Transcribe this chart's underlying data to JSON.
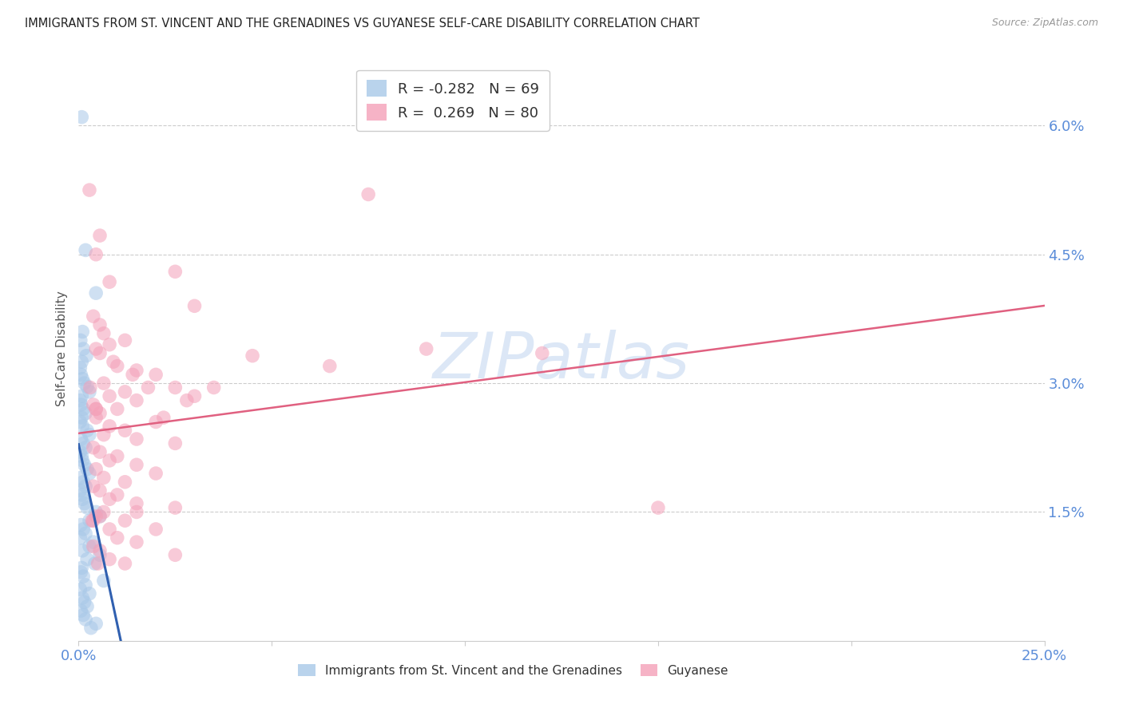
{
  "title": "IMMIGRANTS FROM ST. VINCENT AND THE GRENADINES VS GUYANESE SELF-CARE DISABILITY CORRELATION CHART",
  "source": "Source: ZipAtlas.com",
  "ylabel": "Self-Care Disability",
  "y_ticks": [
    0.0,
    1.5,
    3.0,
    4.5,
    6.0
  ],
  "y_tick_labels": [
    "",
    "1.5%",
    "3.0%",
    "4.5%",
    "6.0%"
  ],
  "xlim": [
    0.0,
    25.0
  ],
  "ylim": [
    0.0,
    6.8
  ],
  "blue_color": "#a8c8e8",
  "pink_color": "#f4a0b8",
  "trendline_blue_color": "#3060b0",
  "trendline_pink_color": "#e06080",
  "trendline_gray_color": "#bbbbbb",
  "watermark": "ZIPatlas",
  "grid_color": "#cccccc",
  "tick_color": "#5b8dd9",
  "blue_points": [
    [
      0.08,
      6.1
    ],
    [
      0.18,
      4.55
    ],
    [
      0.45,
      4.05
    ],
    [
      0.1,
      3.6
    ],
    [
      0.05,
      3.5
    ],
    [
      0.12,
      3.4
    ],
    [
      0.2,
      3.32
    ],
    [
      0.08,
      3.25
    ],
    [
      0.04,
      3.18
    ],
    [
      0.06,
      3.1
    ],
    [
      0.1,
      3.05
    ],
    [
      0.15,
      3.0
    ],
    [
      0.22,
      2.96
    ],
    [
      0.28,
      2.9
    ],
    [
      0.08,
      2.85
    ],
    [
      0.04,
      2.8
    ],
    [
      0.06,
      2.75
    ],
    [
      0.12,
      2.7
    ],
    [
      0.18,
      2.65
    ],
    [
      0.08,
      2.6
    ],
    [
      0.04,
      2.55
    ],
    [
      0.1,
      2.5
    ],
    [
      0.22,
      2.45
    ],
    [
      0.28,
      2.4
    ],
    [
      0.06,
      2.35
    ],
    [
      0.12,
      2.3
    ],
    [
      0.18,
      2.25
    ],
    [
      0.04,
      2.2
    ],
    [
      0.08,
      2.15
    ],
    [
      0.1,
      2.1
    ],
    [
      0.15,
      2.05
    ],
    [
      0.22,
      2.0
    ],
    [
      0.28,
      1.95
    ],
    [
      0.06,
      1.9
    ],
    [
      0.12,
      1.85
    ],
    [
      0.18,
      1.8
    ],
    [
      0.04,
      1.75
    ],
    [
      0.08,
      1.7
    ],
    [
      0.1,
      1.65
    ],
    [
      0.15,
      1.6
    ],
    [
      0.22,
      1.55
    ],
    [
      0.45,
      1.5
    ],
    [
      0.55,
      1.45
    ],
    [
      0.28,
      1.4
    ],
    [
      0.06,
      1.35
    ],
    [
      0.12,
      1.3
    ],
    [
      0.18,
      1.25
    ],
    [
      0.04,
      1.2
    ],
    [
      0.38,
      1.15
    ],
    [
      0.28,
      1.1
    ],
    [
      0.1,
      1.05
    ],
    [
      0.55,
      1.0
    ],
    [
      0.22,
      0.95
    ],
    [
      0.42,
      0.9
    ],
    [
      0.08,
      0.85
    ],
    [
      0.06,
      0.8
    ],
    [
      0.12,
      0.75
    ],
    [
      0.65,
      0.7
    ],
    [
      0.18,
      0.65
    ],
    [
      0.04,
      0.6
    ],
    [
      0.28,
      0.55
    ],
    [
      0.1,
      0.5
    ],
    [
      0.15,
      0.45
    ],
    [
      0.22,
      0.4
    ],
    [
      0.06,
      0.35
    ],
    [
      0.12,
      0.3
    ],
    [
      0.18,
      0.25
    ],
    [
      0.45,
      0.2
    ],
    [
      0.32,
      0.15
    ]
  ],
  "pink_points": [
    [
      0.28,
      5.25
    ],
    [
      0.55,
      4.72
    ],
    [
      0.45,
      4.5
    ],
    [
      7.5,
      5.2
    ],
    [
      12.0,
      3.35
    ],
    [
      2.5,
      4.3
    ],
    [
      0.8,
      4.18
    ],
    [
      3.0,
      3.9
    ],
    [
      0.38,
      3.78
    ],
    [
      0.55,
      3.68
    ],
    [
      0.65,
      3.58
    ],
    [
      1.2,
      3.5
    ],
    [
      0.8,
      3.45
    ],
    [
      0.45,
      3.4
    ],
    [
      0.55,
      3.35
    ],
    [
      4.5,
      3.32
    ],
    [
      0.9,
      3.25
    ],
    [
      1.0,
      3.2
    ],
    [
      1.5,
      3.15
    ],
    [
      2.0,
      3.1
    ],
    [
      0.65,
      3.0
    ],
    [
      2.5,
      2.95
    ],
    [
      0.3,
      2.95
    ],
    [
      1.8,
      2.95
    ],
    [
      1.2,
      2.9
    ],
    [
      0.8,
      2.85
    ],
    [
      3.0,
      2.85
    ],
    [
      1.5,
      2.8
    ],
    [
      0.38,
      2.75
    ],
    [
      0.45,
      2.7
    ],
    [
      1.0,
      2.7
    ],
    [
      0.55,
      2.65
    ],
    [
      0.45,
      2.6
    ],
    [
      2.2,
      2.6
    ],
    [
      2.0,
      2.55
    ],
    [
      0.8,
      2.5
    ],
    [
      1.2,
      2.45
    ],
    [
      0.65,
      2.4
    ],
    [
      1.5,
      2.35
    ],
    [
      2.5,
      2.3
    ],
    [
      0.38,
      2.25
    ],
    [
      0.55,
      2.2
    ],
    [
      1.0,
      2.15
    ],
    [
      0.8,
      2.1
    ],
    [
      1.5,
      2.05
    ],
    [
      0.45,
      2.0
    ],
    [
      2.0,
      1.95
    ],
    [
      0.65,
      1.9
    ],
    [
      1.2,
      1.85
    ],
    [
      0.38,
      1.8
    ],
    [
      0.55,
      1.75
    ],
    [
      1.0,
      1.7
    ],
    [
      0.8,
      1.65
    ],
    [
      1.5,
      1.6
    ],
    [
      2.5,
      1.55
    ],
    [
      1.5,
      1.5
    ],
    [
      0.65,
      1.5
    ],
    [
      0.45,
      1.45
    ],
    [
      1.2,
      1.4
    ],
    [
      0.38,
      1.4
    ],
    [
      0.55,
      1.45
    ],
    [
      0.8,
      1.3
    ],
    [
      2.0,
      1.3
    ],
    [
      0.8,
      0.95
    ],
    [
      1.2,
      0.9
    ],
    [
      15.0,
      1.55
    ],
    [
      6.5,
      3.2
    ],
    [
      9.0,
      3.4
    ],
    [
      3.5,
      2.95
    ],
    [
      1.4,
      3.1
    ],
    [
      2.8,
      2.8
    ],
    [
      0.45,
      2.7
    ],
    [
      0.35,
      1.4
    ],
    [
      0.5,
      0.9
    ],
    [
      1.0,
      1.2
    ],
    [
      1.5,
      1.15
    ],
    [
      0.38,
      1.1
    ],
    [
      0.55,
      1.05
    ],
    [
      2.5,
      1.0
    ]
  ]
}
